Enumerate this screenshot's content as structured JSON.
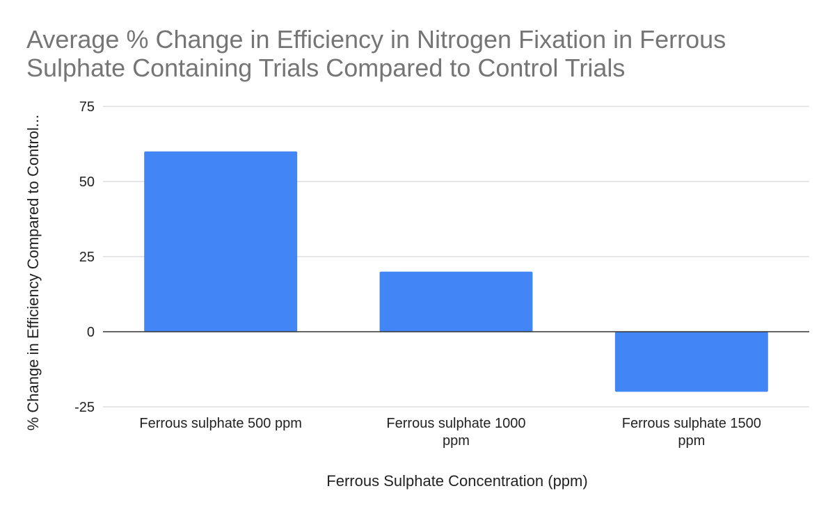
{
  "title_lines": [
    "Average % Change in Efficiency in Nitrogen Fixation in Ferrous",
    "Sulphate Containing Trials Compared to Control Trials"
  ],
  "chart_data": {
    "type": "bar",
    "title": "Average % Change in Efficiency in Nitrogen Fixation in Ferrous Sulphate Containing Trials Compared to Control Trials",
    "xlabel": "Ferrous Sulphate Concentration (ppm)",
    "ylabel": "% Change in Efficiency Compared to Control...",
    "categories": [
      "Ferrous sulphate 500 ppm",
      "Ferrous sulphate 1000 ppm",
      "Ferrous sulphate 1500 ppm"
    ],
    "category_label_lines": [
      [
        "Ferrous sulphate 500 ppm"
      ],
      [
        "Ferrous sulphate 1000",
        "ppm"
      ],
      [
        "Ferrous sulphate 1500",
        "ppm"
      ]
    ],
    "values": [
      60,
      20,
      -20
    ],
    "ylim": [
      -25,
      75
    ],
    "yticks": [
      75,
      50,
      25,
      0,
      -25
    ],
    "grid": true,
    "legend": "none",
    "colors": {
      "bar": "#4285f4",
      "gridline": "#cccccc",
      "zero_line": "#333333",
      "title": "#757575",
      "text": "#222222"
    }
  }
}
